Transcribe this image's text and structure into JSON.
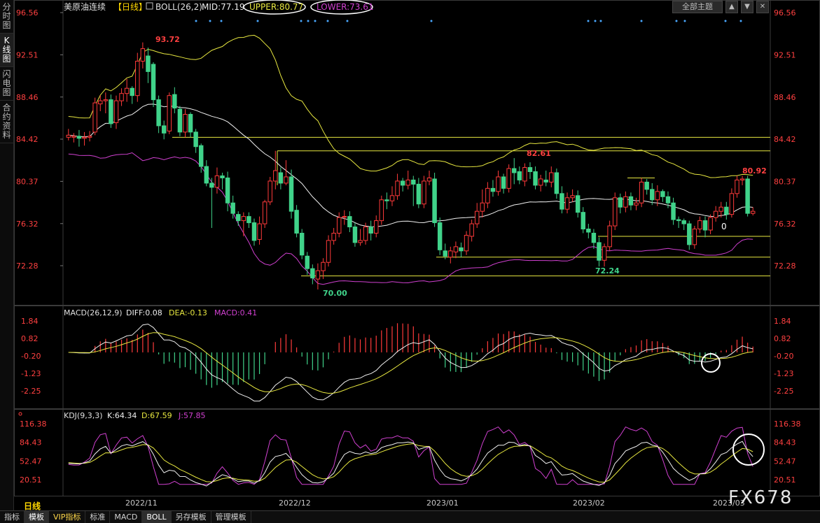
{
  "sidebar": {
    "tabs": [
      {
        "label": "分时图",
        "active": false
      },
      {
        "label": "K线图",
        "active": true
      },
      {
        "label": "闪电图",
        "active": false
      },
      {
        "label": "合约资料",
        "active": false
      }
    ]
  },
  "header": {
    "symbol": "美原油连续",
    "period": "【日线】",
    "boll_label": "BOLL(26,2)",
    "mid": "MID:77.19",
    "upper": "UPPER:80.77",
    "lower": "LOWER:73.61",
    "period_select": "全部主题",
    "ctl_buttons": [
      "▲",
      "▼",
      "✕"
    ]
  },
  "price_axis": [
    "96.56",
    "92.51",
    "88.46",
    "84.42",
    "80.37",
    "76.32",
    "72.28"
  ],
  "annotations": {
    "high": "93.72",
    "low_dec": "70.00",
    "peak_jan": "82.61",
    "low_feb": "72.24",
    "last_high": "80.92",
    "marker": "0"
  },
  "macd": {
    "label": "MACD(26,12,9)",
    "diff": "DIFF:0.08",
    "dea": "DEA:-0.13",
    "macd": "MACD:0.41",
    "axis": [
      "1.84",
      "0.82",
      "-0.20",
      "-1.23",
      "-2.25"
    ]
  },
  "kdj": {
    "label": "KDJ(9,3,3)",
    "k": "K:64.34",
    "d": "D:67.59",
    "j": "J:57.85",
    "axis": [
      "116.38",
      "84.43",
      "52.47",
      "20.51"
    ]
  },
  "dates": [
    "2022/11",
    "2022/12",
    "2023/01",
    "2023/02",
    "2023/03"
  ],
  "period_label": "日线",
  "bottom_tabs": [
    {
      "label": "指标",
      "active": false,
      "vip": false
    },
    {
      "label": "模板",
      "active": true,
      "vip": false
    },
    {
      "label": "VIP指标",
      "active": false,
      "vip": true
    },
    {
      "label": "标准",
      "active": false,
      "vip": false
    },
    {
      "label": "MACD",
      "active": false,
      "vip": false
    },
    {
      "label": "BOLL",
      "active": true,
      "vip": false
    },
    {
      "label": "另存模板",
      "active": false,
      "vip": false
    },
    {
      "label": "管理模板",
      "active": false,
      "vip": false
    }
  ],
  "watermark": "FX678",
  "colors": {
    "up": "#ff3a3a",
    "down": "#40d38a",
    "upper": "#e8e840",
    "mid": "#f0f0f0",
    "lower": "#d040d0",
    "accent": "#ffd700"
  },
  "candles": [
    [
      84.6,
      84.8,
      84.3,
      85.4
    ],
    [
      84.6,
      84.7,
      84.1,
      85.0
    ],
    [
      84.7,
      84.5,
      83.7,
      85.3
    ],
    [
      84.5,
      84.6,
      83.8,
      85.1
    ],
    [
      84.6,
      84.7,
      84.2,
      85.2
    ],
    [
      85.1,
      87.9,
      84.8,
      88.4
    ],
    [
      87.8,
      88.1,
      87.1,
      88.6
    ],
    [
      88.1,
      88.2,
      86.9,
      88.9
    ],
    [
      88.2,
      85.9,
      85.5,
      88.7
    ],
    [
      86.0,
      88.1,
      85.4,
      88.6
    ],
    [
      88.1,
      88.8,
      87.6,
      89.3
    ],
    [
      88.8,
      89.3,
      88.0,
      90.2
    ],
    [
      89.3,
      88.6,
      87.8,
      89.5
    ],
    [
      88.6,
      91.9,
      88.0,
      92.7
    ],
    [
      91.9,
      93.1,
      91.2,
      93.7
    ],
    [
      92.4,
      90.9,
      89.8,
      93.2
    ],
    [
      91.6,
      88.2,
      87.5,
      91.8
    ],
    [
      88.2,
      85.7,
      85.0,
      88.6
    ],
    [
      85.7,
      85.0,
      84.4,
      86.2
    ],
    [
      85.2,
      88.6,
      84.9,
      88.9
    ],
    [
      88.7,
      87.4,
      86.9,
      89.4
    ],
    [
      87.3,
      85.1,
      84.7,
      87.6
    ],
    [
      85.1,
      86.8,
      84.6,
      87.3
    ],
    [
      86.8,
      85.1,
      84.6,
      87.0
    ],
    [
      85.1,
      83.7,
      83.1,
      85.4
    ],
    [
      83.8,
      81.8,
      81.2,
      84.0
    ],
    [
      81.8,
      80.2,
      79.9,
      82.4
    ],
    [
      80.2,
      79.8,
      75.9,
      80.7
    ],
    [
      79.8,
      80.9,
      79.2,
      81.7
    ],
    [
      80.9,
      80.7,
      79.6,
      81.2
    ],
    [
      80.7,
      78.3,
      77.5,
      81.3
    ],
    [
      78.3,
      77.3,
      76.8,
      79.0
    ],
    [
      77.2,
      76.6,
      76.1,
      77.5
    ],
    [
      76.6,
      77.0,
      75.1,
      77.4
    ],
    [
      77.0,
      76.4,
      75.9,
      77.4
    ],
    [
      76.4,
      74.7,
      74.2,
      76.8
    ],
    [
      74.8,
      76.3,
      74.3,
      77.0
    ],
    [
      76.3,
      78.4,
      75.9,
      78.6
    ],
    [
      78.4,
      80.4,
      78.1,
      80.8
    ],
    [
      80.4,
      81.4,
      79.6,
      83.3
    ],
    [
      81.2,
      80.2,
      79.6,
      81.7
    ],
    [
      80.2,
      80.8,
      80.0,
      82.4
    ],
    [
      80.8,
      77.5,
      76.8,
      81.5
    ],
    [
      77.6,
      75.4,
      75.0,
      78.1
    ],
    [
      75.4,
      73.3,
      72.9,
      75.8
    ],
    [
      73.2,
      72.0,
      71.4,
      73.6
    ],
    [
      72.0,
      71.1,
      70.5,
      72.4
    ],
    [
      71.0,
      71.8,
      70.0,
      72.5
    ],
    [
      71.8,
      72.6,
      71.0,
      73.0
    ],
    [
      72.6,
      74.7,
      72.2,
      75.2
    ],
    [
      74.7,
      75.4,
      74.3,
      75.9
    ],
    [
      75.4,
      76.9,
      75.0,
      77.4
    ],
    [
      77.0,
      77.0,
      76.2,
      77.6
    ],
    [
      77.0,
      76.0,
      75.5,
      77.5
    ],
    [
      76.0,
      74.5,
      74.1,
      76.4
    ],
    [
      74.5,
      74.7,
      74.2,
      75.8
    ],
    [
      74.7,
      76.0,
      74.3,
      76.4
    ],
    [
      76.0,
      75.4,
      74.7,
      76.6
    ],
    [
      75.4,
      76.6,
      75.0,
      77.1
    ],
    [
      76.6,
      78.6,
      76.2,
      79.0
    ],
    [
      78.6,
      78.5,
      77.7,
      79.3
    ],
    [
      78.5,
      79.0,
      78.0,
      79.9
    ],
    [
      79.0,
      80.4,
      78.6,
      81.1
    ],
    [
      80.4,
      80.0,
      79.4,
      80.7
    ],
    [
      80.0,
      80.5,
      79.6,
      81.4
    ],
    [
      80.5,
      80.1,
      78.0,
      80.9
    ],
    [
      80.1,
      78.2,
      77.8,
      80.7
    ],
    [
      78.2,
      80.4,
      77.8,
      80.9
    ],
    [
      80.4,
      80.7,
      80.0,
      81.4
    ],
    [
      80.6,
      76.4,
      76.0,
      81.2
    ],
    [
      76.4,
      73.8,
      73.3,
      76.9
    ],
    [
      73.7,
      73.2,
      72.9,
      74.4
    ],
    [
      73.1,
      73.7,
      72.5,
      74.1
    ],
    [
      73.6,
      74.1,
      73.0,
      74.6
    ],
    [
      74.0,
      73.7,
      73.1,
      74.5
    ],
    [
      73.7,
      75.2,
      73.3,
      75.6
    ],
    [
      75.1,
      76.3,
      74.6,
      76.7
    ],
    [
      76.3,
      77.5,
      75.9,
      78.3
    ],
    [
      77.5,
      78.3,
      76.9,
      79.6
    ],
    [
      78.3,
      79.7,
      77.8,
      80.3
    ],
    [
      79.7,
      79.4,
      78.9,
      80.5
    ],
    [
      79.4,
      80.8,
      79.0,
      81.4
    ],
    [
      80.8,
      79.7,
      79.2,
      81.1
    ],
    [
      79.7,
      81.6,
      79.3,
      82.0
    ],
    [
      81.6,
      81.2,
      80.1,
      82.6
    ],
    [
      81.3,
      80.5,
      80.1,
      81.8
    ],
    [
      80.4,
      81.7,
      79.9,
      82.1
    ],
    [
      81.7,
      81.3,
      80.6,
      82.2
    ],
    [
      81.3,
      80.0,
      79.6,
      81.8
    ],
    [
      80.0,
      80.6,
      79.4,
      81.0
    ],
    [
      80.5,
      80.3,
      79.9,
      81.4
    ],
    [
      80.3,
      81.2,
      79.8,
      81.8
    ],
    [
      81.2,
      79.2,
      78.7,
      81.6
    ],
    [
      79.2,
      77.7,
      77.3,
      79.9
    ],
    [
      77.7,
      78.8,
      77.3,
      79.3
    ],
    [
      78.8,
      79.0,
      78.4,
      79.6
    ],
    [
      79.0,
      77.4,
      76.9,
      79.5
    ],
    [
      77.4,
      75.8,
      75.4,
      77.9
    ],
    [
      75.8,
      75.5,
      74.9,
      76.3
    ],
    [
      75.4,
      74.5,
      73.9,
      75.8
    ],
    [
      74.5,
      72.8,
      72.2,
      75.0
    ],
    [
      72.8,
      74.1,
      72.2,
      74.4
    ],
    [
      74.1,
      76.1,
      73.7,
      76.6
    ],
    [
      76.1,
      78.8,
      75.7,
      79.3
    ],
    [
      78.8,
      77.9,
      77.3,
      79.2
    ],
    [
      77.9,
      78.9,
      77.4,
      79.4
    ],
    [
      78.9,
      78.1,
      77.6,
      79.3
    ],
    [
      78.1,
      78.3,
      77.6,
      78.8
    ],
    [
      78.3,
      80.3,
      77.9,
      80.7
    ],
    [
      80.3,
      79.6,
      79.1,
      80.6
    ],
    [
      79.6,
      78.6,
      78.1,
      80.2
    ],
    [
      78.6,
      79.4,
      78.0,
      80.0
    ],
    [
      79.4,
      78.9,
      78.4,
      79.6
    ],
    [
      78.9,
      78.3,
      77.8,
      79.4
    ],
    [
      78.3,
      76.7,
      76.2,
      78.8
    ],
    [
      76.7,
      76.6,
      75.9,
      77.0
    ],
    [
      76.6,
      76.3,
      75.7,
      76.8
    ],
    [
      76.3,
      74.3,
      73.8,
      76.6
    ],
    [
      74.3,
      75.8,
      73.9,
      76.1
    ],
    [
      75.8,
      76.6,
      75.4,
      77.0
    ],
    [
      76.6,
      75.7,
      75.0,
      77.0
    ],
    [
      75.7,
      76.9,
      75.3,
      77.2
    ],
    [
      76.9,
      77.5,
      76.5,
      78.0
    ],
    [
      77.5,
      77.9,
      76.9,
      78.4
    ],
    [
      77.9,
      77.2,
      76.7,
      78.4
    ],
    [
      77.2,
      79.2,
      76.9,
      79.7
    ],
    [
      79.2,
      80.5,
      78.8,
      80.9
    ],
    [
      80.5,
      80.6,
      80.0,
      80.9
    ],
    [
      80.6,
      77.3,
      77.0,
      80.9
    ],
    [
      77.3,
      77.5,
      77.1,
      77.9
    ]
  ]
}
